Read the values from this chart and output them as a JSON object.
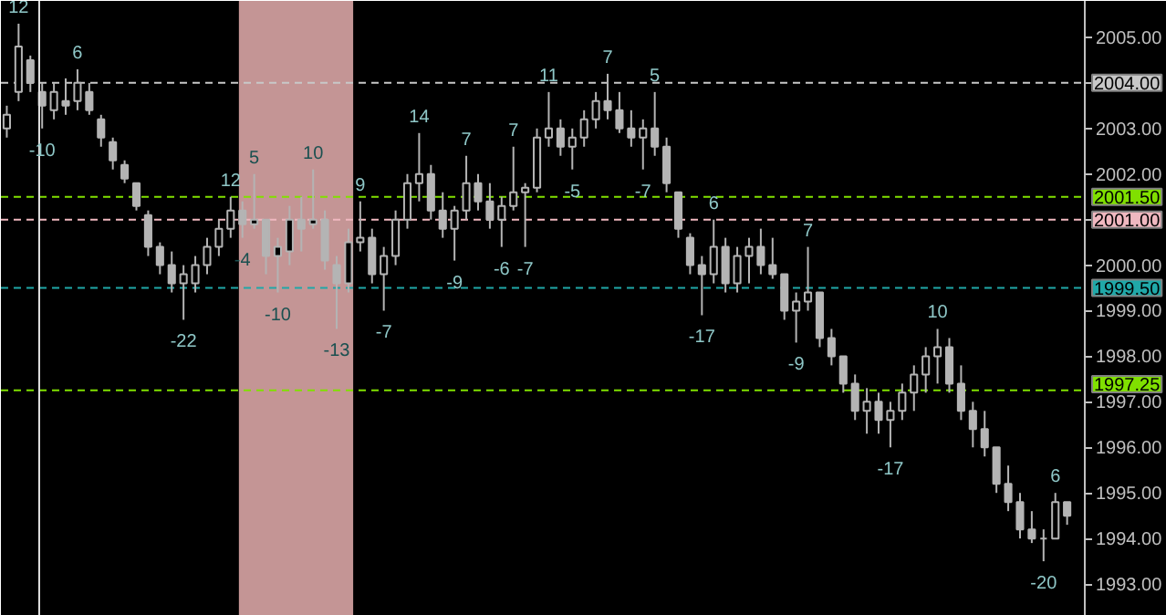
{
  "chart_data": {
    "type": "candlestick",
    "color": "#b4b4b4",
    "categories": [
      null,
      null,
      null,
      null,
      null,
      null,
      null,
      null,
      null,
      null,
      null,
      null,
      null,
      null,
      null,
      null,
      null,
      null,
      null,
      null,
      null,
      null,
      null,
      null,
      null,
      null,
      null,
      null,
      null,
      null,
      null,
      null,
      null,
      null,
      null,
      null,
      null,
      null,
      null,
      null,
      null,
      null,
      null,
      null,
      null,
      null,
      null,
      null,
      null,
      null,
      null,
      null,
      null,
      null,
      null,
      null,
      null,
      null,
      null,
      null,
      null,
      null,
      null,
      null,
      null,
      null,
      null,
      null,
      null,
      null,
      null,
      null,
      null,
      null,
      null,
      null,
      null,
      null,
      null,
      null,
      null,
      null,
      null,
      null,
      null,
      null,
      null,
      null,
      null,
      null,
      null
    ],
    "ohlc": [
      [
        2003.0,
        2003.5,
        2002.8,
        2003.3
      ],
      [
        2003.8,
        2005.3,
        2003.6,
        2004.8
      ],
      [
        2004.5,
        2004.6,
        2003.8,
        2004.0
      ],
      [
        2003.8,
        2004.0,
        2003.0,
        2003.5
      ],
      [
        2003.4,
        2004.0,
        2003.2,
        2003.8
      ],
      [
        2003.6,
        2004.1,
        2003.3,
        2003.5
      ],
      [
        2003.6,
        2004.3,
        2003.4,
        2004.0
      ],
      [
        2003.8,
        2004.0,
        2003.3,
        2003.4
      ],
      [
        2003.2,
        2003.3,
        2002.6,
        2002.8
      ],
      [
        2002.7,
        2002.8,
        2002.1,
        2002.3
      ],
      [
        2002.2,
        2002.3,
        2001.8,
        2001.9
      ],
      [
        2001.8,
        2001.8,
        2001.2,
        2001.3
      ],
      [
        2001.1,
        2001.2,
        2000.2,
        2000.4
      ],
      [
        2000.4,
        2000.5,
        1999.8,
        2000.0
      ],
      [
        2000.0,
        2000.3,
        1999.4,
        1999.6
      ],
      [
        1999.6,
        2000.0,
        1998.8,
        1999.8
      ],
      [
        1999.6,
        2000.2,
        1999.4,
        2000.0
      ],
      [
        2000.0,
        2000.6,
        1999.8,
        2000.4
      ],
      [
        2000.4,
        2001.0,
        2000.2,
        2000.8
      ],
      [
        2000.8,
        2001.5,
        2000.6,
        2001.2
      ],
      [
        2001.2,
        2001.4,
        2000.6,
        2000.9
      ],
      [
        2000.9,
        2002.0,
        2000.8,
        2001.0
      ],
      [
        2001.0,
        2001.0,
        1999.8,
        2000.2
      ],
      [
        2000.2,
        2000.6,
        1999.4,
        2000.4
      ],
      [
        2000.3,
        2001.3,
        2000.0,
        2001.0
      ],
      [
        2001.0,
        2001.5,
        2000.3,
        2000.8
      ],
      [
        2000.9,
        2002.1,
        2000.8,
        2001.0
      ],
      [
        2001.0,
        2001.2,
        1999.9,
        2000.1
      ],
      [
        2000.0,
        2000.2,
        1998.6,
        1999.6
      ],
      [
        1999.6,
        2000.8,
        1999.4,
        2000.5
      ],
      [
        2000.5,
        2001.4,
        2000.3,
        2000.6
      ],
      [
        2000.6,
        2000.8,
        1999.6,
        1999.8
      ],
      [
        1999.8,
        2000.4,
        1999.0,
        2000.2
      ],
      [
        2000.2,
        2001.2,
        2000.0,
        2001.0
      ],
      [
        2001.0,
        2002.0,
        2000.8,
        2001.8
      ],
      [
        2001.8,
        2002.9,
        2001.4,
        2002.0
      ],
      [
        2002.0,
        2002.2,
        2001.0,
        2001.2
      ],
      [
        2001.2,
        2001.6,
        2000.6,
        2000.8
      ],
      [
        2000.8,
        2001.3,
        2000.1,
        2001.2
      ],
      [
        2001.2,
        2002.4,
        2001.0,
        2001.8
      ],
      [
        2001.8,
        2002.0,
        2001.2,
        2001.4
      ],
      [
        2001.4,
        2001.8,
        2000.8,
        2001.0
      ],
      [
        2001.0,
        2001.5,
        2000.4,
        2001.3
      ],
      [
        2001.3,
        2002.6,
        2001.2,
        2001.6
      ],
      [
        2001.6,
        2001.8,
        2000.4,
        2001.7
      ],
      [
        2001.7,
        2003.0,
        2001.6,
        2002.8
      ],
      [
        2002.8,
        2003.8,
        2002.6,
        2003.0
      ],
      [
        2003.0,
        2003.2,
        2002.4,
        2002.6
      ],
      [
        2002.6,
        2003.0,
        2002.1,
        2002.8
      ],
      [
        2002.8,
        2003.4,
        2002.6,
        2003.2
      ],
      [
        2003.2,
        2003.8,
        2003.0,
        2003.6
      ],
      [
        2003.6,
        2004.2,
        2003.2,
        2003.4
      ],
      [
        2003.4,
        2003.8,
        2002.9,
        2003.0
      ],
      [
        2003.0,
        2003.4,
        2002.6,
        2002.8
      ],
      [
        2002.8,
        2003.2,
        2002.1,
        2003.0
      ],
      [
        2003.0,
        2003.8,
        2002.4,
        2002.6
      ],
      [
        2002.6,
        2002.8,
        2001.6,
        2001.8
      ],
      [
        2001.6,
        2001.6,
        2000.6,
        2000.8
      ],
      [
        2000.6,
        2000.7,
        1999.8,
        2000.0
      ],
      [
        2000.0,
        2000.2,
        1998.9,
        1999.8
      ],
      [
        1999.8,
        2001.0,
        1999.6,
        2000.4
      ],
      [
        2000.4,
        2000.6,
        1999.4,
        1999.6
      ],
      [
        1999.6,
        2000.4,
        1999.4,
        2000.2
      ],
      [
        2000.2,
        2000.6,
        1999.6,
        2000.4
      ],
      [
        2000.4,
        2000.8,
        1999.8,
        2000.0
      ],
      [
        2000.0,
        2000.6,
        1999.7,
        1999.8
      ],
      [
        1999.8,
        1999.8,
        1998.8,
        1999.0
      ],
      [
        1999.0,
        1999.4,
        1998.3,
        1999.2
      ],
      [
        1999.2,
        2000.4,
        1999.0,
        1999.4
      ],
      [
        1999.4,
        1999.4,
        1998.2,
        1998.4
      ],
      [
        1998.4,
        1998.6,
        1997.8,
        1998.0
      ],
      [
        1998.0,
        1998.0,
        1997.2,
        1997.4
      ],
      [
        1997.4,
        1997.6,
        1996.6,
        1996.8
      ],
      [
        1996.8,
        1997.3,
        1996.3,
        1997.0
      ],
      [
        1997.0,
        1997.2,
        1996.3,
        1996.6
      ],
      [
        1996.6,
        1997.0,
        1996.0,
        1996.8
      ],
      [
        1996.8,
        1997.4,
        1996.6,
        1997.2
      ],
      [
        1997.2,
        1997.8,
        1996.8,
        1997.6
      ],
      [
        1997.6,
        1998.2,
        1997.2,
        1998.0
      ],
      [
        1998.0,
        1998.6,
        1997.4,
        1998.2
      ],
      [
        1998.2,
        1998.4,
        1997.2,
        1997.4
      ],
      [
        1997.4,
        1997.8,
        1996.6,
        1996.8
      ],
      [
        1996.8,
        1997.0,
        1996.0,
        1996.4
      ],
      [
        1996.4,
        1996.8,
        1995.8,
        1996.0
      ],
      [
        1996.0,
        1996.0,
        1995.0,
        1995.2
      ],
      [
        1995.2,
        1995.6,
        1994.6,
        1994.8
      ],
      [
        1994.8,
        1995.0,
        1994.0,
        1994.2
      ],
      [
        1994.2,
        1994.6,
        1993.9,
        1994.0
      ],
      [
        1994.0,
        1994.2,
        1993.5,
        1994.0
      ],
      [
        1994.0,
        1995.0,
        1994.0,
        1994.8
      ],
      [
        1994.8,
        1994.8,
        1994.3,
        1994.5
      ]
    ],
    "value_labels": [
      null,
      "12",
      null,
      "-10",
      null,
      null,
      "6",
      null,
      null,
      null,
      null,
      null,
      null,
      null,
      null,
      "-22",
      null,
      null,
      null,
      "12",
      "-4",
      "5",
      null,
      "-10",
      null,
      null,
      "10",
      null,
      "-13",
      null,
      "9",
      null,
      "-7",
      null,
      null,
      "14",
      null,
      null,
      "-9",
      "7",
      null,
      null,
      "-6",
      "7",
      "-7",
      null,
      "11",
      null,
      "-5",
      null,
      null,
      "7",
      null,
      null,
      "-7",
      "5",
      null,
      null,
      null,
      "-17",
      "6",
      null,
      null,
      null,
      null,
      null,
      null,
      "-9",
      "7",
      null,
      null,
      null,
      null,
      null,
      null,
      "-17",
      null,
      null,
      null,
      "10",
      null,
      null,
      null,
      null,
      null,
      null,
      null,
      null,
      "-20",
      "6",
      null
    ],
    "ylim": [
      1992.3,
      2005.8
    ],
    "yticks": [
      {
        "value": 1993,
        "label": "1993.00"
      },
      {
        "value": 1994,
        "label": "1994.00"
      },
      {
        "value": 1995,
        "label": "1995.00"
      },
      {
        "value": 1996,
        "label": "1996.00"
      },
      {
        "value": 1997,
        "label": "1997.00"
      },
      {
        "value": 1998,
        "label": "1998.00"
      },
      {
        "value": 1999,
        "label": "1999.00"
      },
      {
        "value": 2000,
        "label": "2000.00"
      },
      {
        "value": 2001,
        "label": "2001.00"
      },
      {
        "value": 2002,
        "label": "2002.00"
      },
      {
        "value": 2003,
        "label": "2003.00"
      },
      {
        "value": 2004,
        "label": "2004.00"
      },
      {
        "value": 2005,
        "label": "2005.00"
      }
    ],
    "ref_lines": [
      {
        "axis": "y",
        "value": 2004.0,
        "label": "2004.00",
        "color": "#c8c8c8",
        "line_style": "dashed"
      },
      {
        "axis": "y",
        "value": 2001.5,
        "label": "2001.50",
        "color": "#80e000",
        "line_style": "dashed"
      },
      {
        "axis": "y",
        "value": 2001.0,
        "label": "2001.00",
        "color": "#f0b8c0",
        "line_style": "dashed"
      },
      {
        "axis": "y",
        "value": 1999.5,
        "label": "1999.50",
        "color": "#20a8a8",
        "line_style": "dashed"
      },
      {
        "axis": "y",
        "value": 1997.25,
        "label": "1997.25",
        "color": "#80e000",
        "line_style": "dashed"
      }
    ],
    "grid": false
  }
}
